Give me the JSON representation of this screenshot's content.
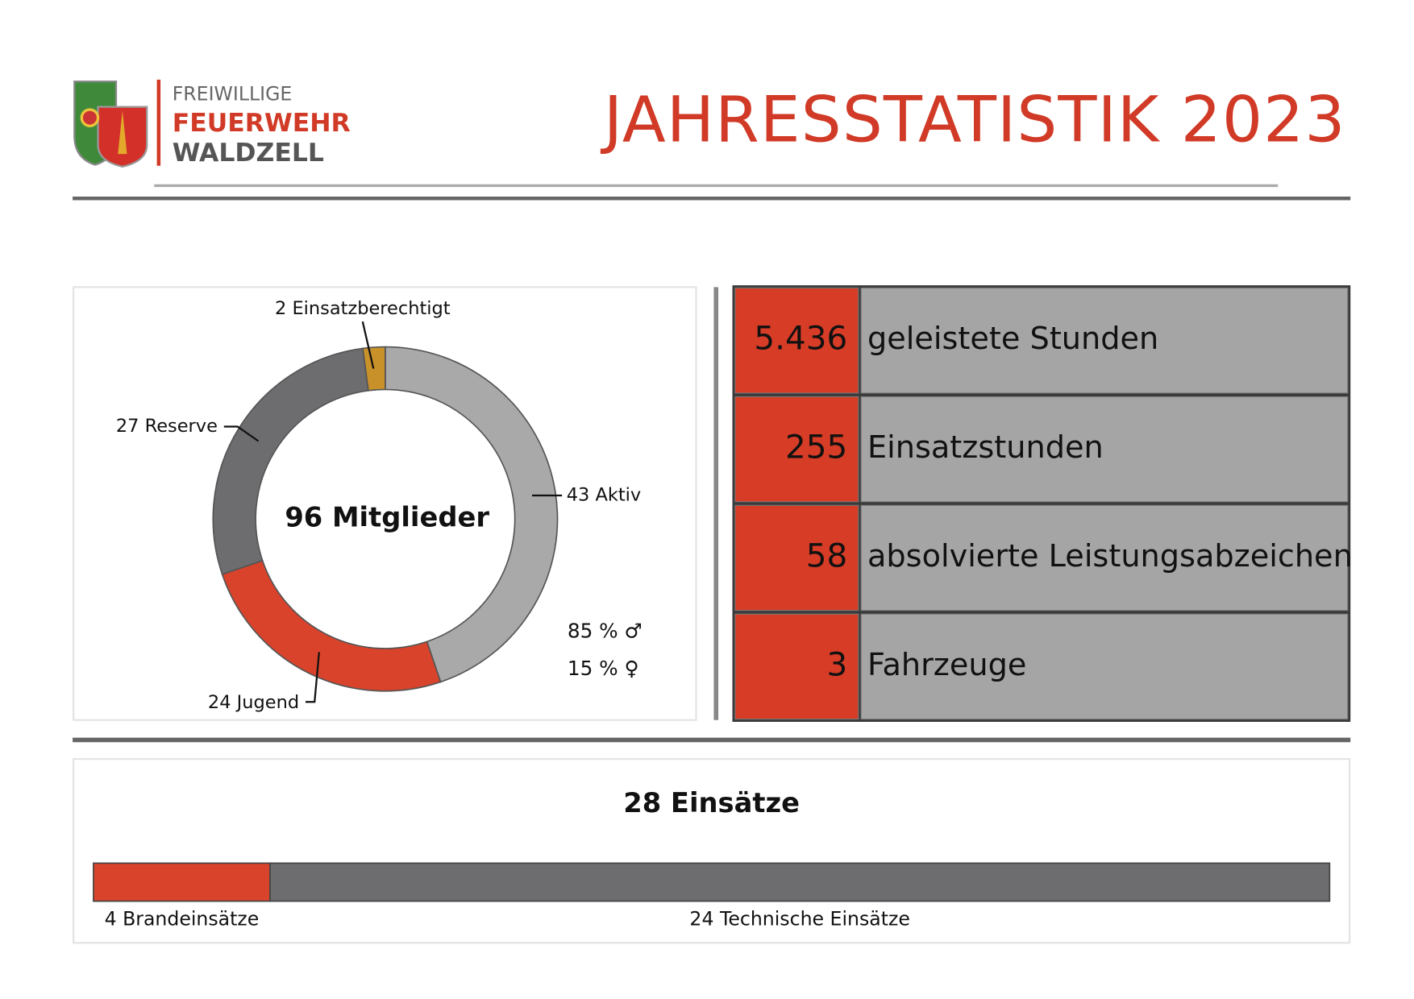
{
  "header": {
    "logo_lines": [
      "FREIWILLIGE",
      "FEUERWEHR",
      "WALDZELL"
    ],
    "title": "JAHRESSTATISTIK 2023"
  },
  "chart_data": [
    {
      "type": "donut",
      "center_label": "96 Mitglieder",
      "values": [
        43,
        24,
        27,
        2
      ],
      "value_labels": [
        "43 Aktiv",
        "24 Jugend",
        "27 Reserve",
        "2 Einsatzberechtigt"
      ],
      "colors": [
        "#a9a9a9",
        "#d9432b",
        "#6d6d70",
        "#c99129"
      ],
      "annotations": [
        "85 % ♂",
        "15 % ♀"
      ]
    },
    {
      "type": "stacked_bar",
      "title": "28 Einsätze",
      "series": [
        {
          "color": "#d9432b",
          "values": [
            4
          ],
          "value_labels": [
            "4 Brandeinsätze"
          ]
        },
        {
          "color": "#6d6d70",
          "values": [
            24
          ],
          "value_labels": [
            "24 Technische Einsätze"
          ]
        }
      ]
    }
  ],
  "stats": [
    {
      "value": "5.436",
      "label": "geleistete Stunden"
    },
    {
      "value": "255",
      "label": "Einsatzstunden"
    },
    {
      "value": "58",
      "label": "absolvierte Leistungsabzeichen"
    },
    {
      "value": "3",
      "label": "Fahrzeuge"
    }
  ]
}
